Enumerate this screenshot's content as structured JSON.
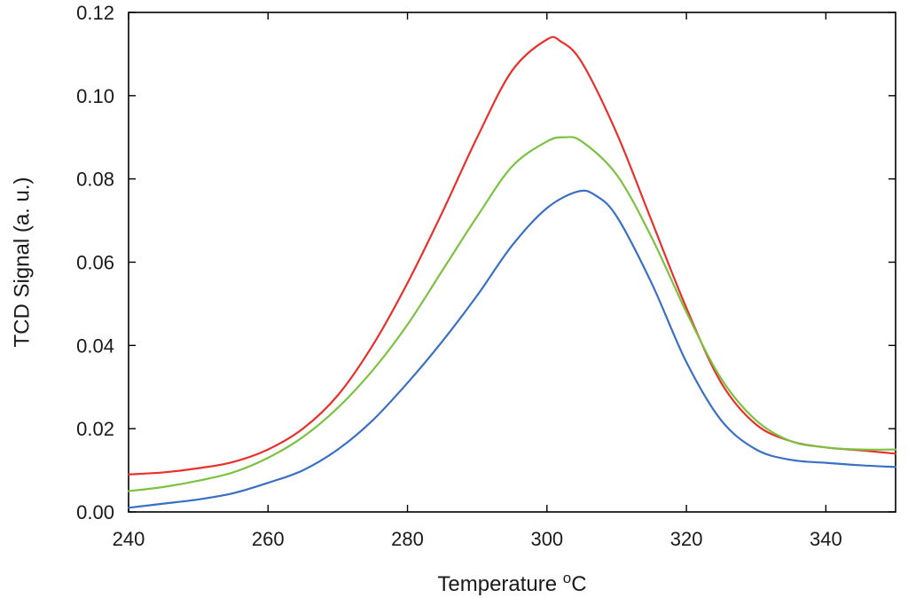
{
  "chart_data": {
    "type": "line",
    "title": "",
    "xlabel": "Temperature ",
    "xlabel_unit_sup": "o",
    "xlabel_unit": "C",
    "ylabel": "TCD Signal (a. u.)",
    "xlim": [
      240,
      350
    ],
    "ylim": [
      0,
      0.12
    ],
    "xticks": [
      240,
      260,
      280,
      300,
      320,
      340
    ],
    "xtick_labels": [
      "240",
      "260",
      "280",
      "300",
      "320",
      "340"
    ],
    "yticks": [
      0,
      0.02,
      0.04,
      0.06,
      0.08,
      0.1,
      0.12
    ],
    "ytick_labels": [
      "0.00",
      "0.02",
      "0.04",
      "0.06",
      "0.08",
      "0.10",
      "0.12"
    ],
    "grid": false,
    "legend": "none",
    "series": [
      {
        "color": "#e8302c",
        "x": [
          240,
          245,
          250,
          255,
          260,
          265,
          270,
          275,
          280,
          285,
          290,
          295,
          300,
          302,
          305,
          310,
          315,
          320,
          325,
          330,
          335,
          340,
          345,
          350
        ],
        "y": [
          0.009,
          0.0095,
          0.0105,
          0.012,
          0.015,
          0.02,
          0.028,
          0.04,
          0.055,
          0.072,
          0.09,
          0.106,
          0.1135,
          0.113,
          0.108,
          0.091,
          0.07,
          0.049,
          0.031,
          0.021,
          0.017,
          0.0155,
          0.0148,
          0.014
        ]
      },
      {
        "color": "#7cc242",
        "x": [
          240,
          245,
          250,
          255,
          260,
          265,
          270,
          275,
          280,
          285,
          290,
          295,
          300,
          302.5,
          305,
          310,
          315,
          320,
          325,
          330,
          335,
          340,
          345,
          350
        ],
        "y": [
          0.005,
          0.006,
          0.0075,
          0.0095,
          0.013,
          0.018,
          0.025,
          0.034,
          0.045,
          0.058,
          0.071,
          0.083,
          0.089,
          0.09,
          0.089,
          0.081,
          0.066,
          0.048,
          0.032,
          0.022,
          0.017,
          0.0155,
          0.015,
          0.015
        ]
      },
      {
        "color": "#3a6fc4",
        "x": [
          240,
          245,
          250,
          255,
          260,
          265,
          270,
          275,
          280,
          285,
          290,
          295,
          300,
          304.5,
          307,
          310,
          315,
          320,
          325,
          330,
          335,
          340,
          345,
          350
        ],
        "y": [
          0.001,
          0.002,
          0.003,
          0.0045,
          0.007,
          0.01,
          0.015,
          0.022,
          0.031,
          0.041,
          0.052,
          0.064,
          0.073,
          0.077,
          0.076,
          0.071,
          0.055,
          0.036,
          0.022,
          0.015,
          0.0125,
          0.0118,
          0.0112,
          0.0108
        ]
      }
    ]
  }
}
